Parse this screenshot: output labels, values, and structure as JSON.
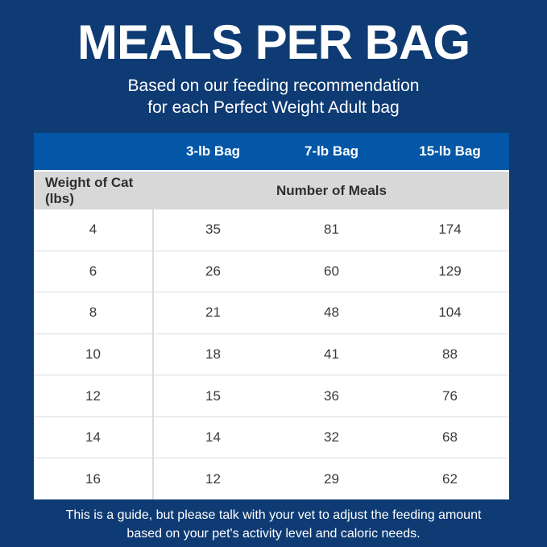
{
  "colors": {
    "background_navy": "#0f3b74",
    "header_bar_blue": "#0357a6",
    "subheader_gray": "#d8d8d8",
    "divider_gray": "#dcdcdc",
    "text_dark": "#2e2e2e",
    "text_white": "#ffffff"
  },
  "header": {
    "title": "MEALS PER BAG",
    "subtitle_line1": "Based on our feeding recommendation",
    "subtitle_line2": "for each Perfect Weight Adult bag"
  },
  "table": {
    "bag_columns": [
      "3-lb Bag",
      "7-lb Bag",
      "15-lb Bag"
    ],
    "row_header_label": "Weight of Cat (lbs)",
    "meals_header_label": "Number of Meals",
    "rows": [
      {
        "weight": "4",
        "meals": [
          "35",
          "81",
          "174"
        ]
      },
      {
        "weight": "6",
        "meals": [
          "26",
          "60",
          "129"
        ]
      },
      {
        "weight": "8",
        "meals": [
          "21",
          "48",
          "104"
        ]
      },
      {
        "weight": "10",
        "meals": [
          "18",
          "41",
          "88"
        ]
      },
      {
        "weight": "12",
        "meals": [
          "15",
          "36",
          "76"
        ]
      },
      {
        "weight": "14",
        "meals": [
          "14",
          "32",
          "68"
        ]
      },
      {
        "weight": "16",
        "meals": [
          "12",
          "29",
          "62"
        ]
      }
    ]
  },
  "footer": {
    "line1": "This is a guide, but please talk with your vet to adjust the feeding amount",
    "line2": "based on your pet's activity level and caloric needs."
  },
  "chart_data": {
    "type": "table",
    "title": "MEALS PER BAG",
    "subtitle": "Based on our feeding recommendation for each Perfect Weight Adult bag",
    "columns": [
      "Weight of Cat (lbs)",
      "3-lb Bag",
      "7-lb Bag",
      "15-lb Bag"
    ],
    "value_header": "Number of Meals",
    "rows": [
      [
        4,
        35,
        81,
        174
      ],
      [
        6,
        26,
        60,
        129
      ],
      [
        8,
        21,
        48,
        104
      ],
      [
        10,
        18,
        41,
        88
      ],
      [
        12,
        15,
        36,
        76
      ],
      [
        14,
        14,
        32,
        68
      ],
      [
        16,
        12,
        29,
        62
      ]
    ],
    "note": "This is a guide, but please talk with your vet to adjust the feeding amount based on your pet's activity level and caloric needs."
  }
}
